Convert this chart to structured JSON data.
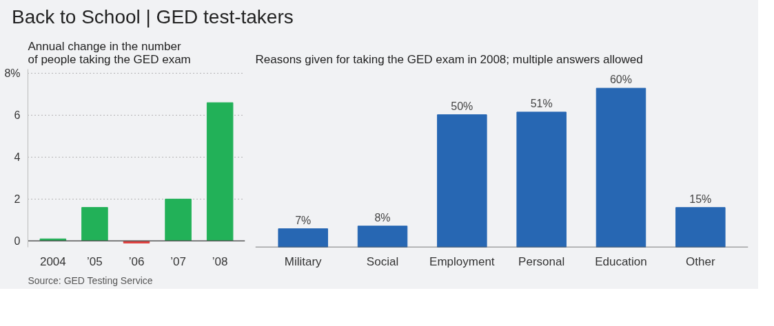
{
  "chart_data": [
    {
      "type": "bar",
      "title": "Back to School | GED test-takers",
      "subtitle": "Annual change in the number\nof people taking the GED exam",
      "categories": [
        "2004",
        "’05",
        "’06",
        "’07",
        "’08"
      ],
      "values": [
        0.1,
        1.6,
        -0.1,
        2.0,
        6.6
      ],
      "colors": [
        "#22b158",
        "#22b158",
        "#e0403f",
        "#22b158",
        "#22b158"
      ],
      "ylim": [
        -0.3,
        8.2
      ],
      "yticks": [
        0,
        2,
        4,
        6,
        {
          "value": 8,
          "label": "8%"
        }
      ],
      "grid": "y",
      "line_style": "dotted",
      "annotations": [
        "Source: GED Testing Service"
      ]
    },
    {
      "type": "bar",
      "subtitle": "Reasons given for taking the GED exam in 2008; multiple answers allowed",
      "categories": [
        "Military",
        "Social",
        "Employment",
        "Personal",
        "Education",
        "Other"
      ],
      "values": [
        7,
        8,
        50,
        51,
        60,
        15
      ],
      "value_labels": [
        "7%",
        "8%",
        "50%",
        "51%",
        "60%",
        "15%"
      ],
      "color": "#2767b3",
      "tick_labels": "x"
    }
  ]
}
